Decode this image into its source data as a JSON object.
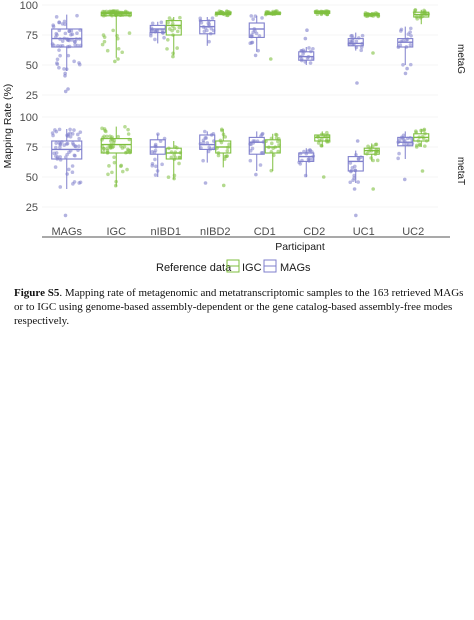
{
  "chart_data": {
    "type": "box",
    "xlabel": "Participant",
    "ylabel": "Mapping Rate (%)",
    "ylim": [
      10,
      100
    ],
    "yticks": [
      25,
      50,
      75,
      100
    ],
    "categories": [
      "MAGs",
      "IGC",
      "nIBD1",
      "nIBD2",
      "CD1",
      "CD2",
      "UC1",
      "UC2"
    ],
    "facets": [
      "metaG",
      "metaT"
    ],
    "legend": {
      "title": "Reference data",
      "position": "bottom",
      "entries": [
        {
          "name": "IGC",
          "color": "#7fbf3f"
        },
        {
          "name": "MAGs",
          "color": "#7f7fcc"
        }
      ]
    },
    "colors": {
      "IGC": "#7fbf3f",
      "MAGs": "#7f7fcc"
    },
    "panels": {
      "metaG": [
        {
          "cat": "MAGs",
          "ref": "MAGs",
          "q1": 65,
          "med": 72,
          "q3": 80,
          "lo": 45,
          "hi": 92
        },
        {
          "cat": "IGC",
          "ref": "IGC",
          "q1": 91,
          "med": 93,
          "q3": 94,
          "lo": 56,
          "hi": 95
        },
        {
          "cat": "nIBD1",
          "ref": "MAGs",
          "q1": 77,
          "med": 80,
          "q3": 83,
          "lo": 68,
          "hi": 86
        },
        {
          "cat": "nIBD1",
          "ref": "IGC",
          "q1": 75,
          "med": 83,
          "q3": 87,
          "lo": 58,
          "hi": 90
        },
        {
          "cat": "nIBD2",
          "ref": "MAGs",
          "q1": 76,
          "med": 82,
          "q3": 87,
          "lo": 66,
          "hi": 90
        },
        {
          "cat": "nIBD2",
          "ref": "IGC",
          "q1": 92,
          "med": 93,
          "q3": 94,
          "lo": 91,
          "hi": 95
        },
        {
          "cat": "CD1",
          "ref": "MAGs",
          "q1": 73,
          "med": 80,
          "q3": 85,
          "lo": 61,
          "hi": 91
        },
        {
          "cat": "CD1",
          "ref": "IGC",
          "q1": 92,
          "med": 93,
          "q3": 94,
          "lo": 91,
          "hi": 95
        },
        {
          "cat": "CD2",
          "ref": "MAGs",
          "q1": 54,
          "med": 57,
          "q3": 61,
          "lo": 50,
          "hi": 65
        },
        {
          "cat": "CD2",
          "ref": "IGC",
          "q1": 93,
          "med": 94,
          "q3": 95,
          "lo": 92,
          "hi": 95
        },
        {
          "cat": "UC1",
          "ref": "MAGs",
          "q1": 66,
          "med": 68,
          "q3": 72,
          "lo": 62,
          "hi": 77
        },
        {
          "cat": "UC1",
          "ref": "IGC",
          "q1": 91,
          "med": 92,
          "q3": 93,
          "lo": 90,
          "hi": 94
        },
        {
          "cat": "UC2",
          "ref": "MAGs",
          "q1": 65,
          "med": 69,
          "q3": 72,
          "lo": 50,
          "hi": 82
        },
        {
          "cat": "UC2",
          "ref": "IGC",
          "q1": 90,
          "med": 92,
          "q3": 94,
          "lo": 84,
          "hi": 96
        }
      ],
      "metaT": [
        {
          "cat": "MAGs",
          "ref": "MAGs",
          "q1": 65,
          "med": 73,
          "q3": 80,
          "lo": 40,
          "hi": 90
        },
        {
          "cat": "IGC",
          "ref": "IGC",
          "q1": 70,
          "med": 77,
          "q3": 82,
          "lo": 42,
          "hi": 92
        },
        {
          "cat": "nIBD1",
          "ref": "MAGs",
          "q1": 69,
          "med": 75,
          "q3": 81,
          "lo": 50,
          "hi": 86
        },
        {
          "cat": "nIBD1",
          "ref": "IGC",
          "q1": 65,
          "med": 70,
          "q3": 74,
          "lo": 48,
          "hi": 80
        },
        {
          "cat": "nIBD2",
          "ref": "MAGs",
          "q1": 73,
          "med": 77,
          "q3": 85,
          "lo": 62,
          "hi": 88
        },
        {
          "cat": "nIBD2",
          "ref": "IGC",
          "q1": 70,
          "med": 75,
          "q3": 80,
          "lo": 58,
          "hi": 90
        },
        {
          "cat": "CD1",
          "ref": "MAGs",
          "q1": 69,
          "med": 79,
          "q3": 83,
          "lo": 55,
          "hi": 88
        },
        {
          "cat": "CD1",
          "ref": "IGC",
          "q1": 70,
          "med": 75,
          "q3": 81,
          "lo": 55,
          "hi": 86
        },
        {
          "cat": "CD2",
          "ref": "MAGs",
          "q1": 63,
          "med": 67,
          "q3": 70,
          "lo": 50,
          "hi": 74
        },
        {
          "cat": "CD2",
          "ref": "IGC",
          "q1": 80,
          "med": 83,
          "q3": 85,
          "lo": 75,
          "hi": 88
        },
        {
          "cat": "UC1",
          "ref": "MAGs",
          "q1": 55,
          "med": 63,
          "q3": 67,
          "lo": 45,
          "hi": 72
        },
        {
          "cat": "UC1",
          "ref": "IGC",
          "q1": 69,
          "med": 72,
          "q3": 74,
          "lo": 63,
          "hi": 78
        },
        {
          "cat": "UC2",
          "ref": "MAGs",
          "q1": 76,
          "med": 79,
          "q3": 83,
          "lo": 65,
          "hi": 88
        },
        {
          "cat": "UC2",
          "ref": "IGC",
          "q1": 80,
          "med": 83,
          "q3": 86,
          "lo": 75,
          "hi": 90
        }
      ]
    },
    "outliers": {
      "metaG": [
        {
          "cat": "MAGs",
          "ref": "MAGs",
          "values": [
            43,
            41,
            30,
            28
          ]
        },
        {
          "cat": "IGC",
          "ref": "IGC",
          "values": [
            55,
            53
          ]
        },
        {
          "cat": "nIBD1",
          "ref": "IGC",
          "values": [
            57
          ]
        },
        {
          "cat": "CD1",
          "ref": "MAGs",
          "values": [
            58
          ]
        },
        {
          "cat": "CD1",
          "ref": "IGC",
          "values": [
            55
          ]
        },
        {
          "cat": "CD2",
          "ref": "MAGs",
          "values": [
            79,
            72
          ]
        },
        {
          "cat": "UC1",
          "ref": "MAGs",
          "values": [
            35
          ]
        },
        {
          "cat": "UC1",
          "ref": "IGC",
          "values": [
            60
          ]
        },
        {
          "cat": "UC2",
          "ref": "MAGs",
          "values": [
            43,
            47
          ]
        }
      ],
      "metaT": [
        {
          "cat": "MAGs",
          "ref": "MAGs",
          "values": [
            18
          ]
        },
        {
          "cat": "nIBD2",
          "ref": "MAGs",
          "values": [
            45
          ]
        },
        {
          "cat": "nIBD2",
          "ref": "IGC",
          "values": [
            43
          ]
        },
        {
          "cat": "CD1",
          "ref": "MAGs",
          "values": [
            52
          ]
        },
        {
          "cat": "CD2",
          "ref": "IGC",
          "values": [
            50
          ]
        },
        {
          "cat": "UC1",
          "ref": "MAGs",
          "values": [
            18,
            40,
            80
          ]
        },
        {
          "cat": "UC1",
          "ref": "IGC",
          "values": [
            40
          ]
        },
        {
          "cat": "UC2",
          "ref": "MAGs",
          "values": [
            48
          ]
        },
        {
          "cat": "UC2",
          "ref": "IGC",
          "values": [
            55
          ]
        }
      ]
    }
  },
  "caption": {
    "label": "Figure S5",
    "text": ". Mapping rate of metagenomic and metatranscriptomic samples to the 163 retrieved MAGs or to IGC using genome-based assembly-dependent or the gene catalog-based assembly-free modes respectively."
  }
}
